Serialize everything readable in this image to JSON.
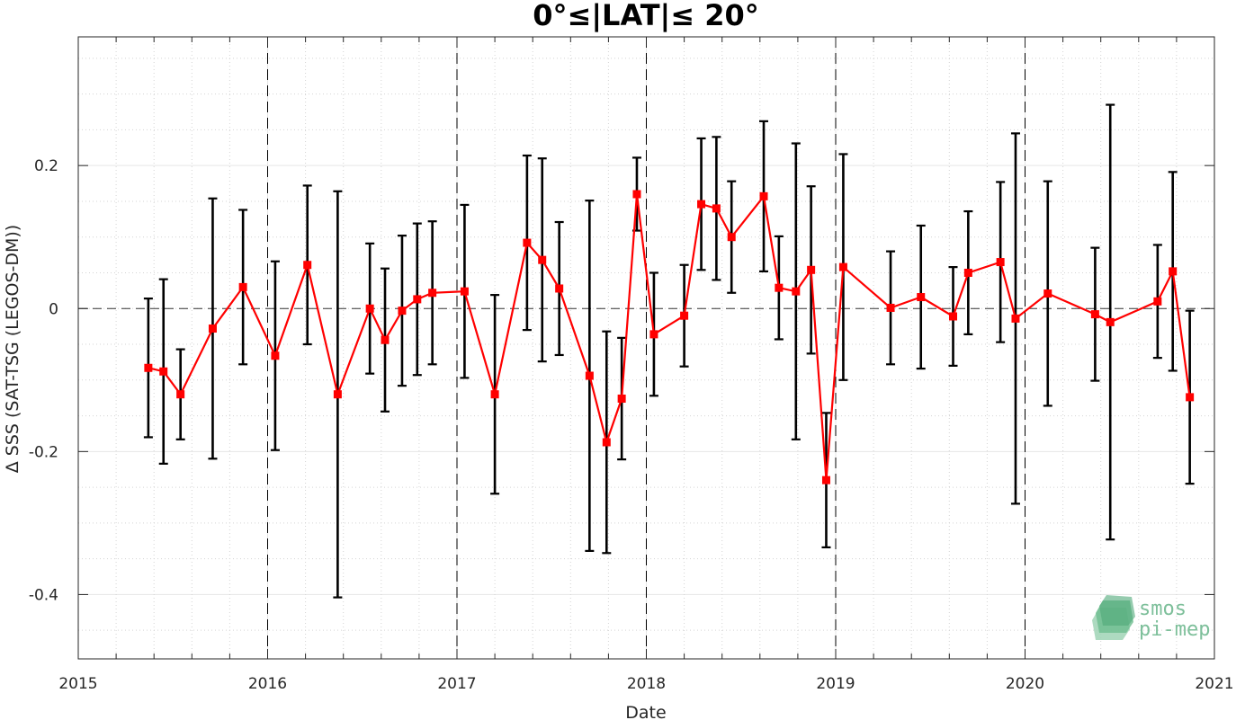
{
  "chart_data": {
    "type": "line",
    "title": "0°≤|LAT|≤ 20°",
    "xlabel": "Date",
    "ylabel": "Δ SSS (SAT-TSG (LEGOS-DM))",
    "xlim": [
      2015,
      2021
    ],
    "ylim": [
      -0.49,
      0.38
    ],
    "x_ticks": [
      2015,
      2016,
      2017,
      2018,
      2019,
      2020,
      2021
    ],
    "x_tick_labels": [
      "2015",
      "2016",
      "2017",
      "2018",
      "2019",
      "2020",
      "2021"
    ],
    "y_ticks": [
      -0.4,
      -0.2,
      0,
      0.2
    ],
    "y_tick_labels": [
      "-0.4",
      "-0.2",
      "0",
      "0.2"
    ],
    "grid": true,
    "zero_line": true,
    "year_separators": [
      2016,
      2017,
      2018,
      2019,
      2020
    ],
    "colors": {
      "series": "#ff0000",
      "errorbars": "#000000"
    },
    "series": [
      {
        "x": [
          2015.37,
          2015.45,
          2015.54,
          2015.71,
          2015.87,
          2016.04,
          2016.21,
          2016.37,
          2016.54,
          2016.62,
          2016.71,
          2016.79,
          2016.87,
          2017.04,
          2017.2,
          2017.37,
          2017.45,
          2017.54,
          2017.7,
          2017.79,
          2017.87,
          2017.95,
          2018.04,
          2018.2,
          2018.29,
          2018.37,
          2018.45,
          2018.62,
          2018.7,
          2018.79,
          2018.87,
          2018.95,
          2019.04,
          2019.29,
          2019.45,
          2019.62,
          2019.7,
          2019.87,
          2019.95,
          2020.12,
          2020.37,
          2020.45,
          2020.7,
          2020.78,
          2020.87
        ],
        "y": [
          -0.083,
          -0.088,
          -0.12,
          -0.028,
          0.03,
          -0.066,
          0.061,
          -0.12,
          0,
          -0.044,
          -0.003,
          0.013,
          0.022,
          0.024,
          -0.12,
          0.092,
          0.068,
          0.028,
          -0.094,
          -0.187,
          -0.126,
          0.16,
          -0.036,
          -0.01,
          0.146,
          0.14,
          0.1,
          0.157,
          0.029,
          0.024,
          0.054,
          -0.24,
          0.058,
          0.001,
          0.016,
          -0.011,
          0.05,
          0.065,
          -0.014,
          0.021,
          -0.008,
          -0.019,
          0.01,
          0.052,
          -0.124
        ],
        "err": [
          0.097,
          0.129,
          0.063,
          0.182,
          0.108,
          0.132,
          0.111,
          0.284,
          0.091,
          0.1,
          0.105,
          0.106,
          0.1,
          0.121,
          0.139,
          0.122,
          0.142,
          0.093,
          0.245,
          0.155,
          0.085,
          0.051,
          0.086,
          0.071,
          0.092,
          0.1,
          0.078,
          0.105,
          0.072,
          0.207,
          0.117,
          0.094,
          0.158,
          0.079,
          0.1,
          0.069,
          0.086,
          0.112,
          0.259,
          0.157,
          0.093,
          0.304,
          0.079,
          0.139,
          0.121
        ]
      }
    ]
  },
  "logo": {
    "line1": "smos",
    "line2": "pi-mep"
  }
}
